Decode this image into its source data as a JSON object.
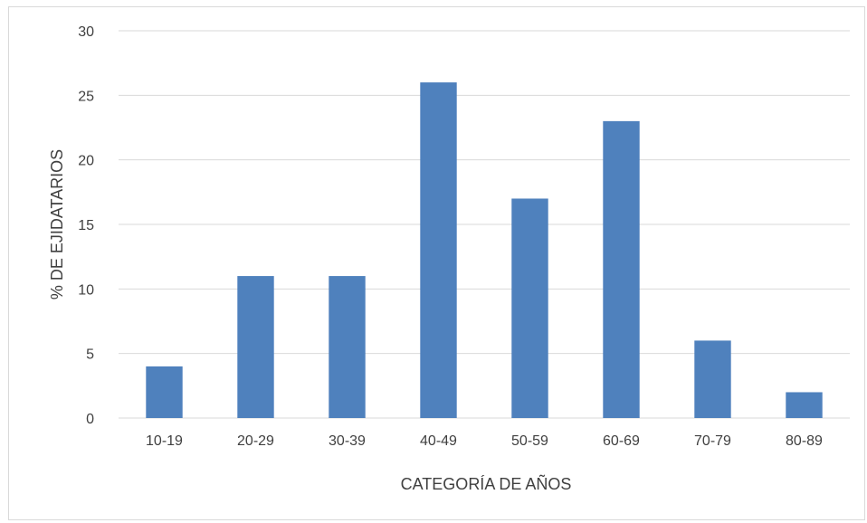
{
  "chart_data": {
    "type": "bar",
    "title": "",
    "xlabel": "CATEGORÍA DE AÑOS",
    "ylabel": "% DE EJIDATARIOS",
    "categories": [
      "10-19",
      "20-29",
      "30-39",
      "40-49",
      "50-59",
      "60-69",
      "70-79",
      "80-89"
    ],
    "values": [
      4,
      11,
      11,
      26,
      17,
      23,
      6,
      2
    ],
    "ylim": [
      0,
      30
    ],
    "yticks": [
      0,
      5,
      10,
      15,
      20,
      25,
      30
    ],
    "grid": true,
    "legend": "none",
    "colors": {
      "bar": "#4f81bd",
      "grid": "#d9d9d9",
      "text": "#404040"
    }
  }
}
